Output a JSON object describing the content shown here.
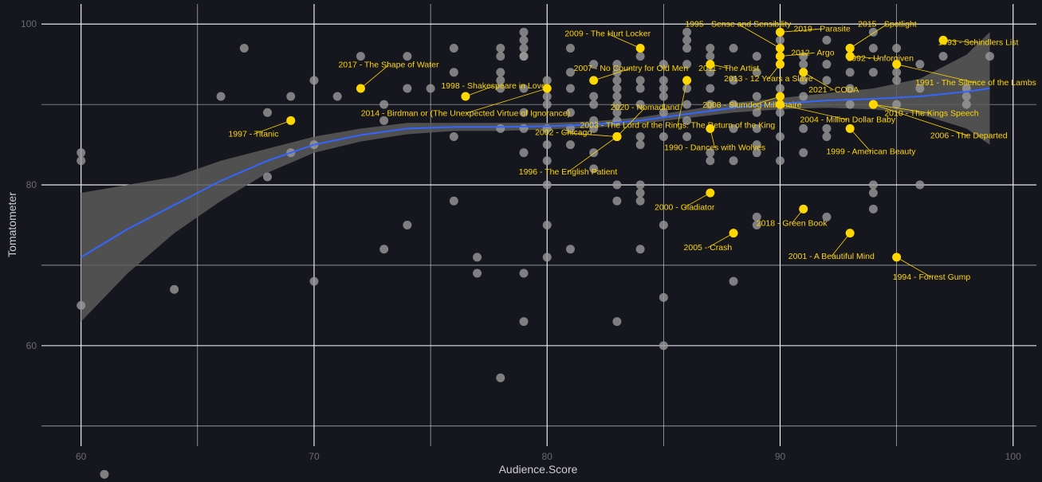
{
  "chart_data": {
    "type": "scatter",
    "title": "",
    "xlabel": "Audience.Score",
    "ylabel": "Tomatometer",
    "xlim": [
      58.3,
      101
    ],
    "ylim": [
      47.5,
      102.5
    ],
    "x_ticks": [
      60,
      70,
      80,
      90,
      100
    ],
    "y_ticks": [
      60,
      80,
      100
    ],
    "grid": true,
    "legend": "none",
    "colors": {
      "background": "#15161e",
      "grid": "#ffffff",
      "other_points": "#9a9a9a",
      "winner_points": "#ffd700",
      "trend_line": "#3366ff",
      "confidence_band": "#5a5a5a"
    },
    "other_points": [
      [
        60,
        84
      ],
      [
        60,
        83
      ],
      [
        60,
        65
      ],
      [
        61,
        44
      ],
      [
        64,
        67
      ],
      [
        66,
        91
      ],
      [
        67,
        97
      ],
      [
        68,
        89
      ],
      [
        68,
        81
      ],
      [
        69,
        91
      ],
      [
        69,
        84
      ],
      [
        70,
        93
      ],
      [
        70,
        85
      ],
      [
        70,
        68
      ],
      [
        71,
        91
      ],
      [
        72,
        96
      ],
      [
        73,
        90
      ],
      [
        73,
        88
      ],
      [
        73,
        72
      ],
      [
        74,
        96
      ],
      [
        74,
        92
      ],
      [
        74,
        75
      ],
      [
        75,
        92
      ],
      [
        76,
        97
      ],
      [
        76,
        94
      ],
      [
        76,
        86
      ],
      [
        76,
        78
      ],
      [
        77,
        71
      ],
      [
        77,
        69
      ],
      [
        78,
        97
      ],
      [
        78,
        96
      ],
      [
        78,
        94
      ],
      [
        78,
        93
      ],
      [
        78,
        92
      ],
      [
        78,
        87
      ],
      [
        78,
        56
      ],
      [
        79,
        99
      ],
      [
        79,
        98
      ],
      [
        79,
        97
      ],
      [
        79,
        96
      ],
      [
        79,
        96
      ],
      [
        79,
        92
      ],
      [
        79,
        89
      ],
      [
        79,
        87
      ],
      [
        79,
        84
      ],
      [
        79,
        69
      ],
      [
        79,
        63
      ],
      [
        80,
        93
      ],
      [
        80,
        91
      ],
      [
        80,
        90
      ],
      [
        80,
        87
      ],
      [
        80,
        85
      ],
      [
        80,
        83
      ],
      [
        80,
        80
      ],
      [
        80,
        75
      ],
      [
        80,
        71
      ],
      [
        81,
        97
      ],
      [
        81,
        94
      ],
      [
        81,
        92
      ],
      [
        81,
        89
      ],
      [
        81,
        87
      ],
      [
        81,
        85
      ],
      [
        81,
        72
      ],
      [
        82,
        95
      ],
      [
        82,
        91
      ],
      [
        82,
        90
      ],
      [
        82,
        88
      ],
      [
        82,
        87
      ],
      [
        82,
        84
      ],
      [
        82,
        82
      ],
      [
        83,
        95
      ],
      [
        83,
        94
      ],
      [
        83,
        93
      ],
      [
        83,
        92
      ],
      [
        83,
        91
      ],
      [
        83,
        90
      ],
      [
        83,
        89
      ],
      [
        83,
        88
      ],
      [
        83,
        86
      ],
      [
        83,
        80
      ],
      [
        83,
        78
      ],
      [
        83,
        63
      ],
      [
        84,
        96
      ],
      [
        84,
        93
      ],
      [
        84,
        92
      ],
      [
        84,
        90
      ],
      [
        84,
        86
      ],
      [
        84,
        85
      ],
      [
        84,
        80
      ],
      [
        84,
        79
      ],
      [
        84,
        78
      ],
      [
        84,
        72
      ],
      [
        85,
        95
      ],
      [
        85,
        93
      ],
      [
        85,
        92
      ],
      [
        85,
        91
      ],
      [
        85,
        89
      ],
      [
        85,
        86
      ],
      [
        85,
        75
      ],
      [
        85,
        66
      ],
      [
        85,
        60
      ],
      [
        86,
        99
      ],
      [
        86,
        98
      ],
      [
        86,
        97
      ],
      [
        86,
        95
      ],
      [
        86,
        92
      ],
      [
        86,
        90
      ],
      [
        86,
        88
      ],
      [
        86,
        86
      ],
      [
        87,
        97
      ],
      [
        87,
        96
      ],
      [
        87,
        94
      ],
      [
        87,
        92
      ],
      [
        87,
        90
      ],
      [
        87,
        84
      ],
      [
        87,
        83
      ],
      [
        88,
        97
      ],
      [
        88,
        93
      ],
      [
        88,
        90
      ],
      [
        88,
        87
      ],
      [
        88,
        83
      ],
      [
        88,
        68
      ],
      [
        89,
        96
      ],
      [
        89,
        94
      ],
      [
        89,
        91
      ],
      [
        89,
        89
      ],
      [
        89,
        87
      ],
      [
        89,
        85
      ],
      [
        89,
        84
      ],
      [
        89,
        76
      ],
      [
        89,
        75
      ],
      [
        90,
        98
      ],
      [
        90,
        96
      ],
      [
        90,
        95
      ],
      [
        90,
        92
      ],
      [
        90,
        90
      ],
      [
        90,
        89
      ],
      [
        90,
        86
      ],
      [
        90,
        83
      ],
      [
        91,
        96
      ],
      [
        91,
        95
      ],
      [
        91,
        93
      ],
      [
        91,
        91
      ],
      [
        91,
        87
      ],
      [
        91,
        84
      ],
      [
        92,
        98
      ],
      [
        92,
        95
      ],
      [
        92,
        93
      ],
      [
        92,
        87
      ],
      [
        92,
        86
      ],
      [
        92,
        76
      ],
      [
        93,
        97
      ],
      [
        93,
        96
      ],
      [
        93,
        94
      ],
      [
        93,
        92
      ],
      [
        93,
        90
      ],
      [
        94,
        99
      ],
      [
        94,
        97
      ],
      [
        94,
        94
      ],
      [
        94,
        80
      ],
      [
        94,
        79
      ],
      [
        94,
        77
      ],
      [
        95,
        97
      ],
      [
        95,
        94
      ],
      [
        95,
        93
      ],
      [
        95,
        90
      ],
      [
        96,
        95
      ],
      [
        96,
        92
      ],
      [
        96,
        80
      ],
      [
        97,
        96
      ],
      [
        98,
        92
      ],
      [
        98,
        91
      ],
      [
        98,
        90
      ],
      [
        99,
        96
      ]
    ],
    "trend": {
      "x": [
        60,
        62,
        64,
        66,
        68,
        70,
        72,
        74,
        76,
        78,
        80,
        82,
        84,
        86,
        88,
        90,
        92,
        94,
        96,
        98,
        99
      ],
      "y": [
        71,
        74.5,
        77.5,
        80.5,
        83,
        85,
        86.2,
        87,
        87.2,
        87.2,
        87.3,
        87.5,
        88,
        88.8,
        89.6,
        90.1,
        90.5,
        90.7,
        91,
        91.6,
        92
      ],
      "lo": [
        63,
        69,
        74,
        78,
        81.5,
        84,
        85.4,
        86.3,
        86.7,
        86.7,
        86.9,
        87.1,
        87.6,
        88.3,
        89,
        89.4,
        89.6,
        89.4,
        88.8,
        87,
        85
      ],
      "hi": [
        79,
        80,
        81,
        83,
        84.5,
        86,
        87,
        87.7,
        87.7,
        87.7,
        87.7,
        87.9,
        88.4,
        89.3,
        90.2,
        90.8,
        91.4,
        92,
        93.2,
        96.2,
        99
      ]
    },
    "winners": [
      {
        "label": "1997 - Titanic",
        "x": 69,
        "y": 88,
        "lx": 67.4,
        "ly": 86,
        "anchor": "middle"
      },
      {
        "label": "2017 - The Shape of Water",
        "x": 72,
        "y": 92,
        "lx": 73.2,
        "ly": 94.6,
        "anchor": "middle"
      },
      {
        "label": "1998 - Shakespeare in Love",
        "x": 76.5,
        "y": 91,
        "lx": 77.7,
        "ly": 92,
        "anchor": "middle"
      },
      {
        "label": "2014 - Birdman or (The Unexpected Virtue of Ignorance)",
        "x": 80,
        "y": 92,
        "lx": 76.5,
        "ly": 88.6,
        "anchor": "middle"
      },
      {
        "label": "2009 - The Hurt Locker",
        "x": 84,
        "y": 97,
        "lx": 82.6,
        "ly": 98.5,
        "anchor": "middle"
      },
      {
        "label": "2007 - No Country for Old Men",
        "x": 82,
        "y": 93,
        "lx": 83.6,
        "ly": 94.2,
        "anchor": "middle"
      },
      {
        "label": "2002 - Chicago",
        "x": 83,
        "y": 86,
        "lx": 80.7,
        "ly": 86.2,
        "anchor": "middle"
      },
      {
        "label": "1996 - The English Patient",
        "x": 83,
        "y": 86,
        "lx": 80.9,
        "ly": 81.3,
        "anchor": "middle"
      },
      {
        "label": "2020 - Nomadland",
        "x": 83,
        "y": 86,
        "lx": 84.2,
        "ly": 89.3,
        "anchor": "middle"
      },
      {
        "label": "2003 - The Lord of the Rings: The Return of the King",
        "x": 86,
        "y": 93,
        "lx": 85.6,
        "ly": 87.1,
        "anchor": "middle"
      },
      {
        "label": "2011 - The Artist",
        "x": 87,
        "y": 95,
        "lx": 87.8,
        "ly": 94.2,
        "anchor": "middle"
      },
      {
        "label": "1995 - Sense and Sensibility",
        "x": 90,
        "y": 97,
        "lx": 88.2,
        "ly": 99.7,
        "anchor": "middle"
      },
      {
        "label": "2019 - Parasite",
        "x": 90,
        "y": 99,
        "lx": 91.8,
        "ly": 99.1,
        "anchor": "middle"
      },
      {
        "label": "2012 - Argo",
        "x": 90,
        "y": 96,
        "lx": 91.4,
        "ly": 96.1,
        "anchor": "middle"
      },
      {
        "label": "2013 - 12 Years a Slave",
        "x": 90,
        "y": 95,
        "lx": 89.5,
        "ly": 92.9,
        "anchor": "middle"
      },
      {
        "label": "2008 - Slumdog Millionaire",
        "x": 90,
        "y": 91,
        "lx": 88.8,
        "ly": 89.6,
        "anchor": "middle"
      },
      {
        "label": "2004 - Million Dollar Baby",
        "x": 90,
        "y": 90,
        "lx": 92.9,
        "ly": 87.8,
        "anchor": "middle"
      },
      {
        "label": "1990 - Dances with Wolves",
        "x": 87,
        "y": 87,
        "lx": 87.2,
        "ly": 84.3,
        "anchor": "middle"
      },
      {
        "label": "2000 - Gladiator",
        "x": 87,
        "y": 79,
        "lx": 85.9,
        "ly": 76.9,
        "anchor": "middle"
      },
      {
        "label": "2005 - Crash",
        "x": 88,
        "y": 74,
        "lx": 86.9,
        "ly": 71.9,
        "anchor": "middle"
      },
      {
        "label": "2015 - Spotlight",
        "x": 93,
        "y": 97,
        "lx": 94.6,
        "ly": 99.7,
        "anchor": "middle"
      },
      {
        "label": "1992 - Unforgiven",
        "x": 93,
        "y": 96,
        "lx": 94.3,
        "ly": 95.4,
        "anchor": "middle"
      },
      {
        "label": "2021 - CODA",
        "x": 91,
        "y": 94,
        "lx": 92.3,
        "ly": 91.5,
        "anchor": "middle"
      },
      {
        "label": "2010 - The Kings Speech",
        "x": 94,
        "y": 90,
        "lx": 96.5,
        "ly": 88.6,
        "anchor": "middle"
      },
      {
        "label": "2006 - The Departed",
        "x": 94,
        "y": 90,
        "lx": 98.1,
        "ly": 85.8,
        "anchor": "middle"
      },
      {
        "label": "1999 - American Beauty",
        "x": 93,
        "y": 87,
        "lx": 93.9,
        "ly": 83.8,
        "anchor": "middle"
      },
      {
        "label": "1993 - Schindlers List",
        "x": 97,
        "y": 98,
        "lx": 98.5,
        "ly": 97.4,
        "anchor": "middle"
      },
      {
        "label": "1991 - The Silence of the Lambs",
        "x": 95,
        "y": 95,
        "lx": 98.4,
        "ly": 92.4,
        "anchor": "middle"
      },
      {
        "label": "2018 - Green Book",
        "x": 91,
        "y": 77,
        "lx": 90.5,
        "ly": 74.9,
        "anchor": "middle"
      },
      {
        "label": "2001 - A Beautiful Mind",
        "x": 93,
        "y": 74,
        "lx": 92.2,
        "ly": 70.8,
        "anchor": "middle"
      },
      {
        "label": "1994 - Forrest Gump",
        "x": 95,
        "y": 71,
        "lx": 96.5,
        "ly": 68.2,
        "anchor": "middle"
      }
    ]
  }
}
